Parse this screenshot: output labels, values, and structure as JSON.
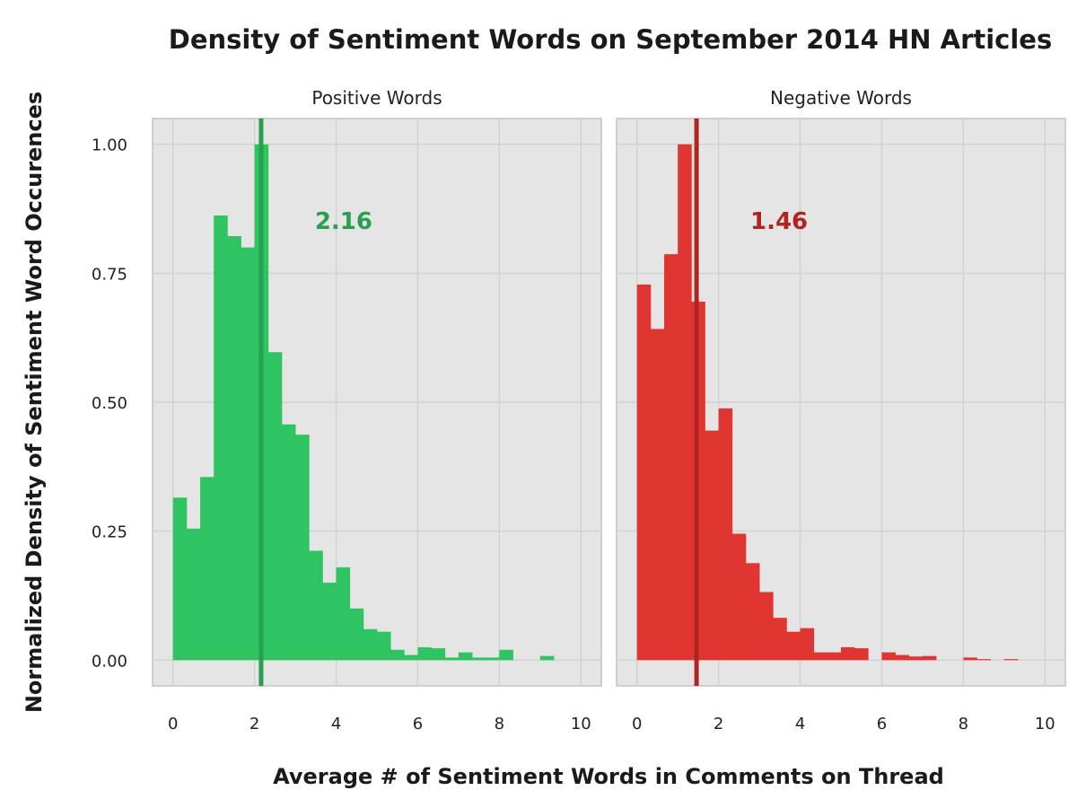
{
  "chart_data": {
    "type": "bar",
    "title": "Density of Sentiment Words on September 2014 HN Articles",
    "xlabel": "Average # of Sentiment Words in Comments on Thread",
    "ylabel": "Normalized Density of Sentiment Word Occurences",
    "xlim": [
      -0.5,
      10.5
    ],
    "ylim": [
      -0.05,
      1.05
    ],
    "x_ticks": [
      "0",
      "2",
      "4",
      "6",
      "8",
      "10"
    ],
    "y_ticks": [
      "0.00",
      "0.25",
      "0.50",
      "0.75",
      "1.00"
    ],
    "bin_width": 0.333,
    "grid": true,
    "panels": [
      {
        "name": "Positive Words",
        "color": "#2EC462",
        "mean_line_color": "#27A050",
        "mean": 2.16,
        "annotation": "2.16",
        "annotation_color": "#27A050",
        "bin_starts": [
          0,
          0.333,
          0.667,
          1.0,
          1.333,
          1.667,
          2.0,
          2.333,
          2.667,
          3.0,
          3.333,
          3.667,
          4.0,
          4.333,
          4.667,
          5.0,
          5.333,
          5.667,
          6.0,
          6.333,
          6.667,
          7.0,
          7.333,
          7.667,
          8.0,
          8.333,
          8.667,
          9.0
        ],
        "values": [
          0.315,
          0.255,
          0.355,
          0.862,
          0.822,
          0.8,
          1.0,
          0.597,
          0.457,
          0.437,
          0.212,
          0.15,
          0.18,
          0.1,
          0.06,
          0.055,
          0.02,
          0.01,
          0.025,
          0.023,
          0.005,
          0.015,
          0.005,
          0.005,
          0.02,
          0.0,
          0.0,
          0.008
        ]
      },
      {
        "name": "Negative Words",
        "color": "#E03531",
        "mean_line_color": "#B22420",
        "mean": 1.46,
        "annotation": "1.46",
        "annotation_color": "#B22420",
        "bin_starts": [
          0,
          0.333,
          0.667,
          1.0,
          1.333,
          1.667,
          2.0,
          2.333,
          2.667,
          3.0,
          3.333,
          3.667,
          4.0,
          4.333,
          4.667,
          5.0,
          5.333,
          5.667,
          6.0,
          6.333,
          6.667,
          7.0,
          7.333,
          7.667,
          8.0,
          8.333,
          8.667,
          9.0
        ],
        "values": [
          0.728,
          0.642,
          0.787,
          1.0,
          0.695,
          0.445,
          0.488,
          0.245,
          0.188,
          0.132,
          0.082,
          0.055,
          0.062,
          0.015,
          0.015,
          0.025,
          0.023,
          0.0,
          0.015,
          0.01,
          0.007,
          0.008,
          0.0,
          0.0,
          0.005,
          0.002,
          0.0,
          0.002
        ]
      }
    ]
  }
}
